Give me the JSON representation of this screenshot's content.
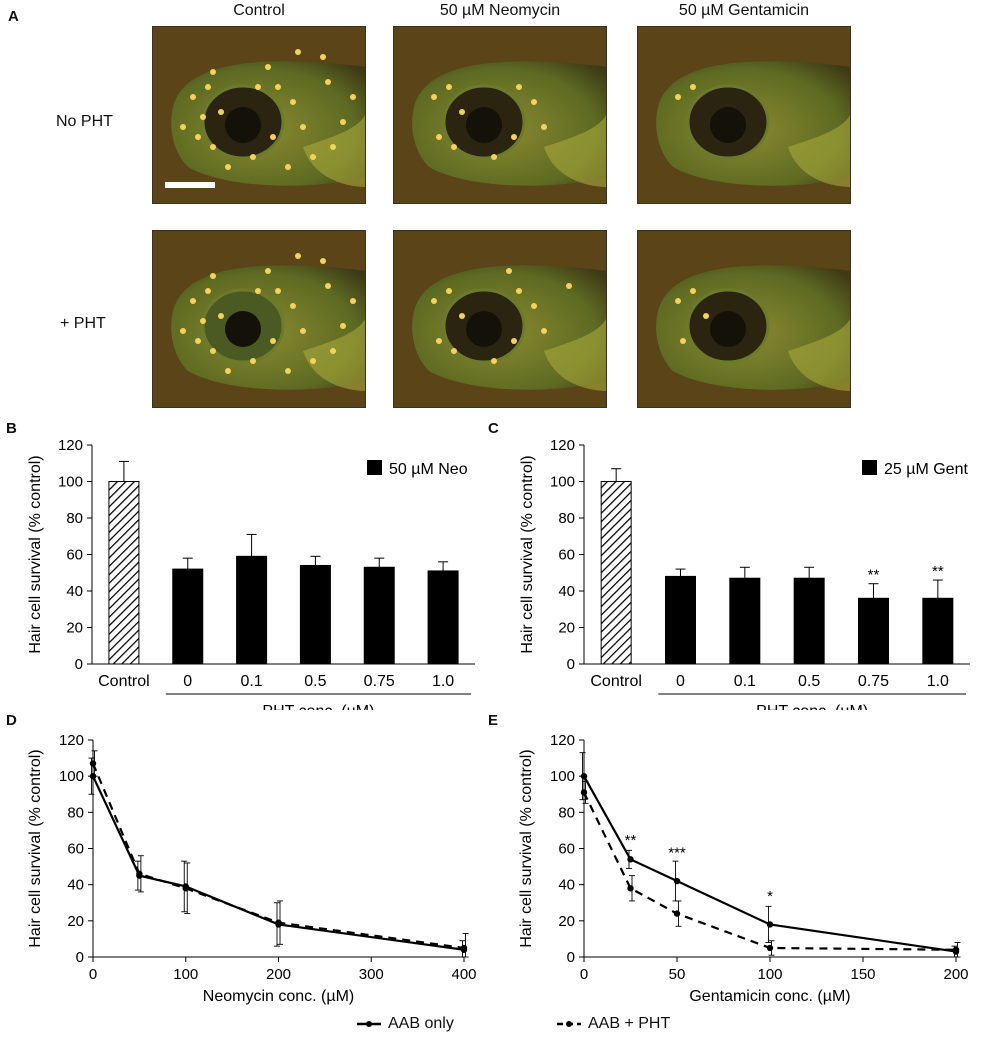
{
  "panel_labels": {
    "A": "A",
    "B": "B",
    "C": "C",
    "D": "D",
    "E": "E"
  },
  "panel_a": {
    "column_titles": [
      "Control",
      "50 µM Neomycin",
      "50 µM Gentamicin"
    ],
    "row_labels": [
      "No PHT",
      "+ PHT"
    ]
  },
  "legend": {
    "solid": "AAB only",
    "dashed": "AAB + PHT"
  },
  "colors": {
    "bar": "#000000",
    "line": "#000000",
    "fish_bg": "#5a4418",
    "hair_cell": "#f5d25a",
    "tissue": "#7a8a2a"
  },
  "chart_data": [
    {
      "id": "B",
      "type": "bar",
      "ylabel": "Hair cell survival (% control)",
      "xgroup_label": "PHT conc. (µM)",
      "legend": "50 µM Neo",
      "categories": [
        "Control",
        "0",
        "0.1",
        "0.5",
        "0.75",
        "1.0"
      ],
      "values": [
        100,
        52,
        59,
        54,
        53,
        51
      ],
      "errors": [
        11,
        6,
        12,
        5,
        5,
        5
      ],
      "hatched": [
        true,
        false,
        false,
        false,
        false,
        false
      ],
      "significance": [
        "",
        "",
        "",
        "",
        "",
        ""
      ],
      "ylim": [
        0,
        120
      ],
      "yticks": [
        "0",
        "20",
        "40",
        "60",
        "80",
        "100",
        "120"
      ]
    },
    {
      "id": "C",
      "type": "bar",
      "ylabel": "Hair cell survival (% control)",
      "xgroup_label": "PHT conc. (µM)",
      "legend": "25 µM Gent",
      "categories": [
        "Control",
        "0",
        "0.1",
        "0.5",
        "0.75",
        "1.0"
      ],
      "values": [
        100,
        48,
        47,
        47,
        36,
        36
      ],
      "errors": [
        7,
        4,
        6,
        6,
        8,
        10
      ],
      "hatched": [
        true,
        false,
        false,
        false,
        false,
        false
      ],
      "significance": [
        "",
        "",
        "",
        "",
        "**",
        "**"
      ],
      "ylim": [
        0,
        120
      ],
      "yticks": [
        "0",
        "20",
        "40",
        "60",
        "80",
        "100",
        "120"
      ]
    },
    {
      "id": "D",
      "type": "line",
      "ylabel": "Hair cell survival (% control)",
      "xlabel": "Neomycin conc. (µM)",
      "xlim": [
        0,
        400
      ],
      "ylim": [
        0,
        120
      ],
      "xticks": [
        "0",
        "100",
        "200",
        "300",
        "400"
      ],
      "yticks": [
        "0",
        "20",
        "40",
        "60",
        "80",
        "100",
        "120"
      ],
      "series": [
        {
          "name": "AAB only",
          "dash": false,
          "x": [
            0,
            50,
            100,
            200,
            400
          ],
          "y": [
            100,
            45,
            39,
            18,
            4
          ],
          "err": [
            10,
            8,
            14,
            12,
            5
          ]
        },
        {
          "name": "AAB + PHT",
          "dash": true,
          "x": [
            0,
            50,
            100,
            200,
            400
          ],
          "y": [
            107,
            46,
            38,
            19,
            5
          ],
          "err": [
            7,
            10,
            14,
            12,
            8
          ]
        }
      ],
      "significance": []
    },
    {
      "id": "E",
      "type": "line",
      "ylabel": "Hair cell survival (% control)",
      "xlabel": "Gentamicin conc. (µM)",
      "xlim": [
        0,
        200
      ],
      "ylim": [
        0,
        120
      ],
      "xticks": [
        "0",
        "50",
        "100",
        "150",
        "200"
      ],
      "yticks": [
        "0",
        "20",
        "40",
        "60",
        "80",
        "100",
        "120"
      ],
      "series": [
        {
          "name": "AAB only",
          "dash": false,
          "x": [
            0,
            25,
            50,
            100,
            200
          ],
          "y": [
            100,
            54,
            42,
            18,
            3
          ],
          "err": [
            13,
            5,
            11,
            10,
            3
          ]
        },
        {
          "name": "AAB + PHT",
          "dash": true,
          "x": [
            0,
            25,
            50,
            100,
            200
          ],
          "y": [
            91,
            38,
            24,
            5,
            4
          ],
          "err": [
            6,
            7,
            7,
            4,
            4
          ]
        }
      ],
      "significance": [
        {
          "x": 25,
          "y": 62,
          "text": "**"
        },
        {
          "x": 50,
          "y": 55,
          "text": "***"
        },
        {
          "x": 100,
          "y": 31,
          "text": "*"
        }
      ]
    }
  ]
}
